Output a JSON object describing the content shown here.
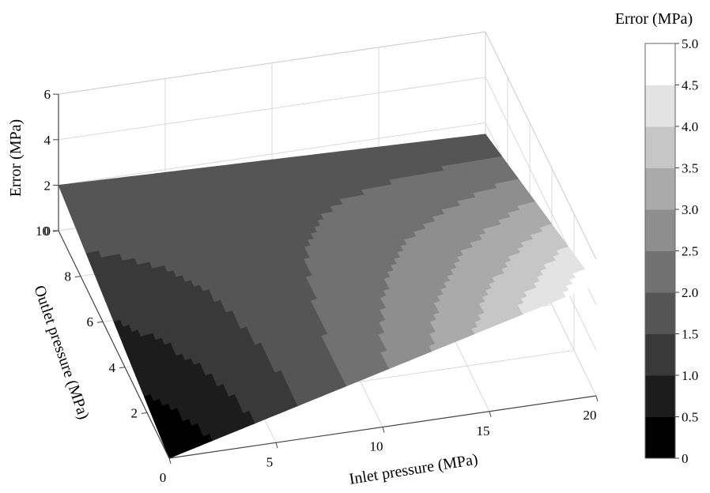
{
  "chart_data": {
    "type": "surface",
    "title": "",
    "x": {
      "label": "Inlet pressure (MPa)",
      "range": [
        0,
        20
      ],
      "ticks": [
        0,
        5,
        10,
        15,
        20
      ],
      "tick_labels": [
        "0",
        "5",
        "10",
        "15",
        "20"
      ]
    },
    "y": {
      "label": "Outlet pressure (MPa)",
      "range": [
        0,
        10
      ],
      "ticks": [
        2,
        4,
        6,
        8,
        10
      ],
      "tick_labels": [
        "2",
        "4",
        "6",
        "8",
        "10"
      ]
    },
    "z": {
      "label": "Error (MPa)",
      "range": [
        0,
        6
      ],
      "ticks": [
        0,
        2,
        4,
        6
      ],
      "tick_labels": [
        "0",
        "2",
        "4",
        "6"
      ]
    },
    "corner_values": [
      {
        "x": 0,
        "y": 0,
        "z": 0.0
      },
      {
        "x": 20,
        "y": 0,
        "z": 4.9
      },
      {
        "x": 20,
        "y": 10,
        "z": 1.5
      },
      {
        "x": 0,
        "y": 10,
        "z": 2.0
      }
    ],
    "colorbar": {
      "title": "Error (MPa)",
      "range": [
        0,
        5
      ],
      "levels": [
        0,
        0.5,
        1.0,
        1.5,
        2.0,
        2.5,
        3.0,
        3.5,
        4.0,
        4.5,
        5.0
      ],
      "tick_labels": [
        "0",
        "0.5",
        "1.0",
        "1.5",
        "2.0",
        "2.5",
        "3.0",
        "3.5",
        "4.0",
        "4.5",
        "5.0"
      ],
      "colormap": "gray",
      "low_color": "#000000",
      "high_color": "#ffffff"
    },
    "grid": true
  }
}
